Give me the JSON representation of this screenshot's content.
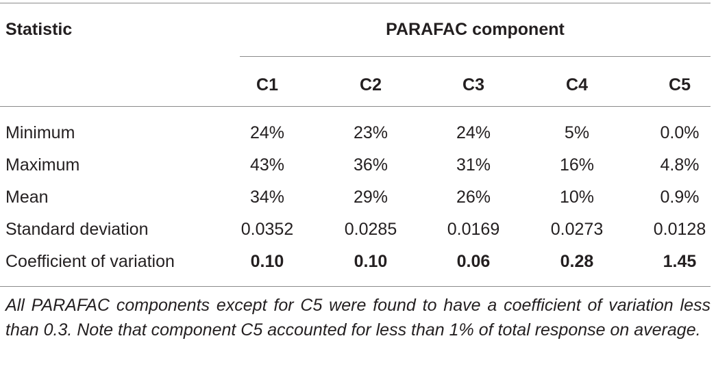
{
  "table": {
    "stat_header": "Statistic",
    "group_header": "PARAFAC component",
    "columns": [
      "C1",
      "C2",
      "C3",
      "C4",
      "C5"
    ],
    "rows": [
      {
        "label": "Minimum",
        "values": [
          "24%",
          "23%",
          "24%",
          "5%",
          "0.0%"
        ],
        "bold": false
      },
      {
        "label": "Maximum",
        "values": [
          "43%",
          "36%",
          "31%",
          "16%",
          "4.8%"
        ],
        "bold": false
      },
      {
        "label": "Mean",
        "values": [
          "34%",
          "29%",
          "26%",
          "10%",
          "0.9%"
        ],
        "bold": false
      },
      {
        "label": "Standard deviation",
        "values": [
          "0.0352",
          "0.0285",
          "0.0169",
          "0.0273",
          "0.0128"
        ],
        "bold": false
      },
      {
        "label": "Coefficient of variation",
        "values": [
          "0.10",
          "0.10",
          "0.06",
          "0.28",
          "1.45"
        ],
        "bold": true
      }
    ]
  },
  "footnote": "All PARAFAC components except for C5 were found to have a coefficient of variation less than 0.3. Note that component C5 accounted for less than 1% of total response on average."
}
